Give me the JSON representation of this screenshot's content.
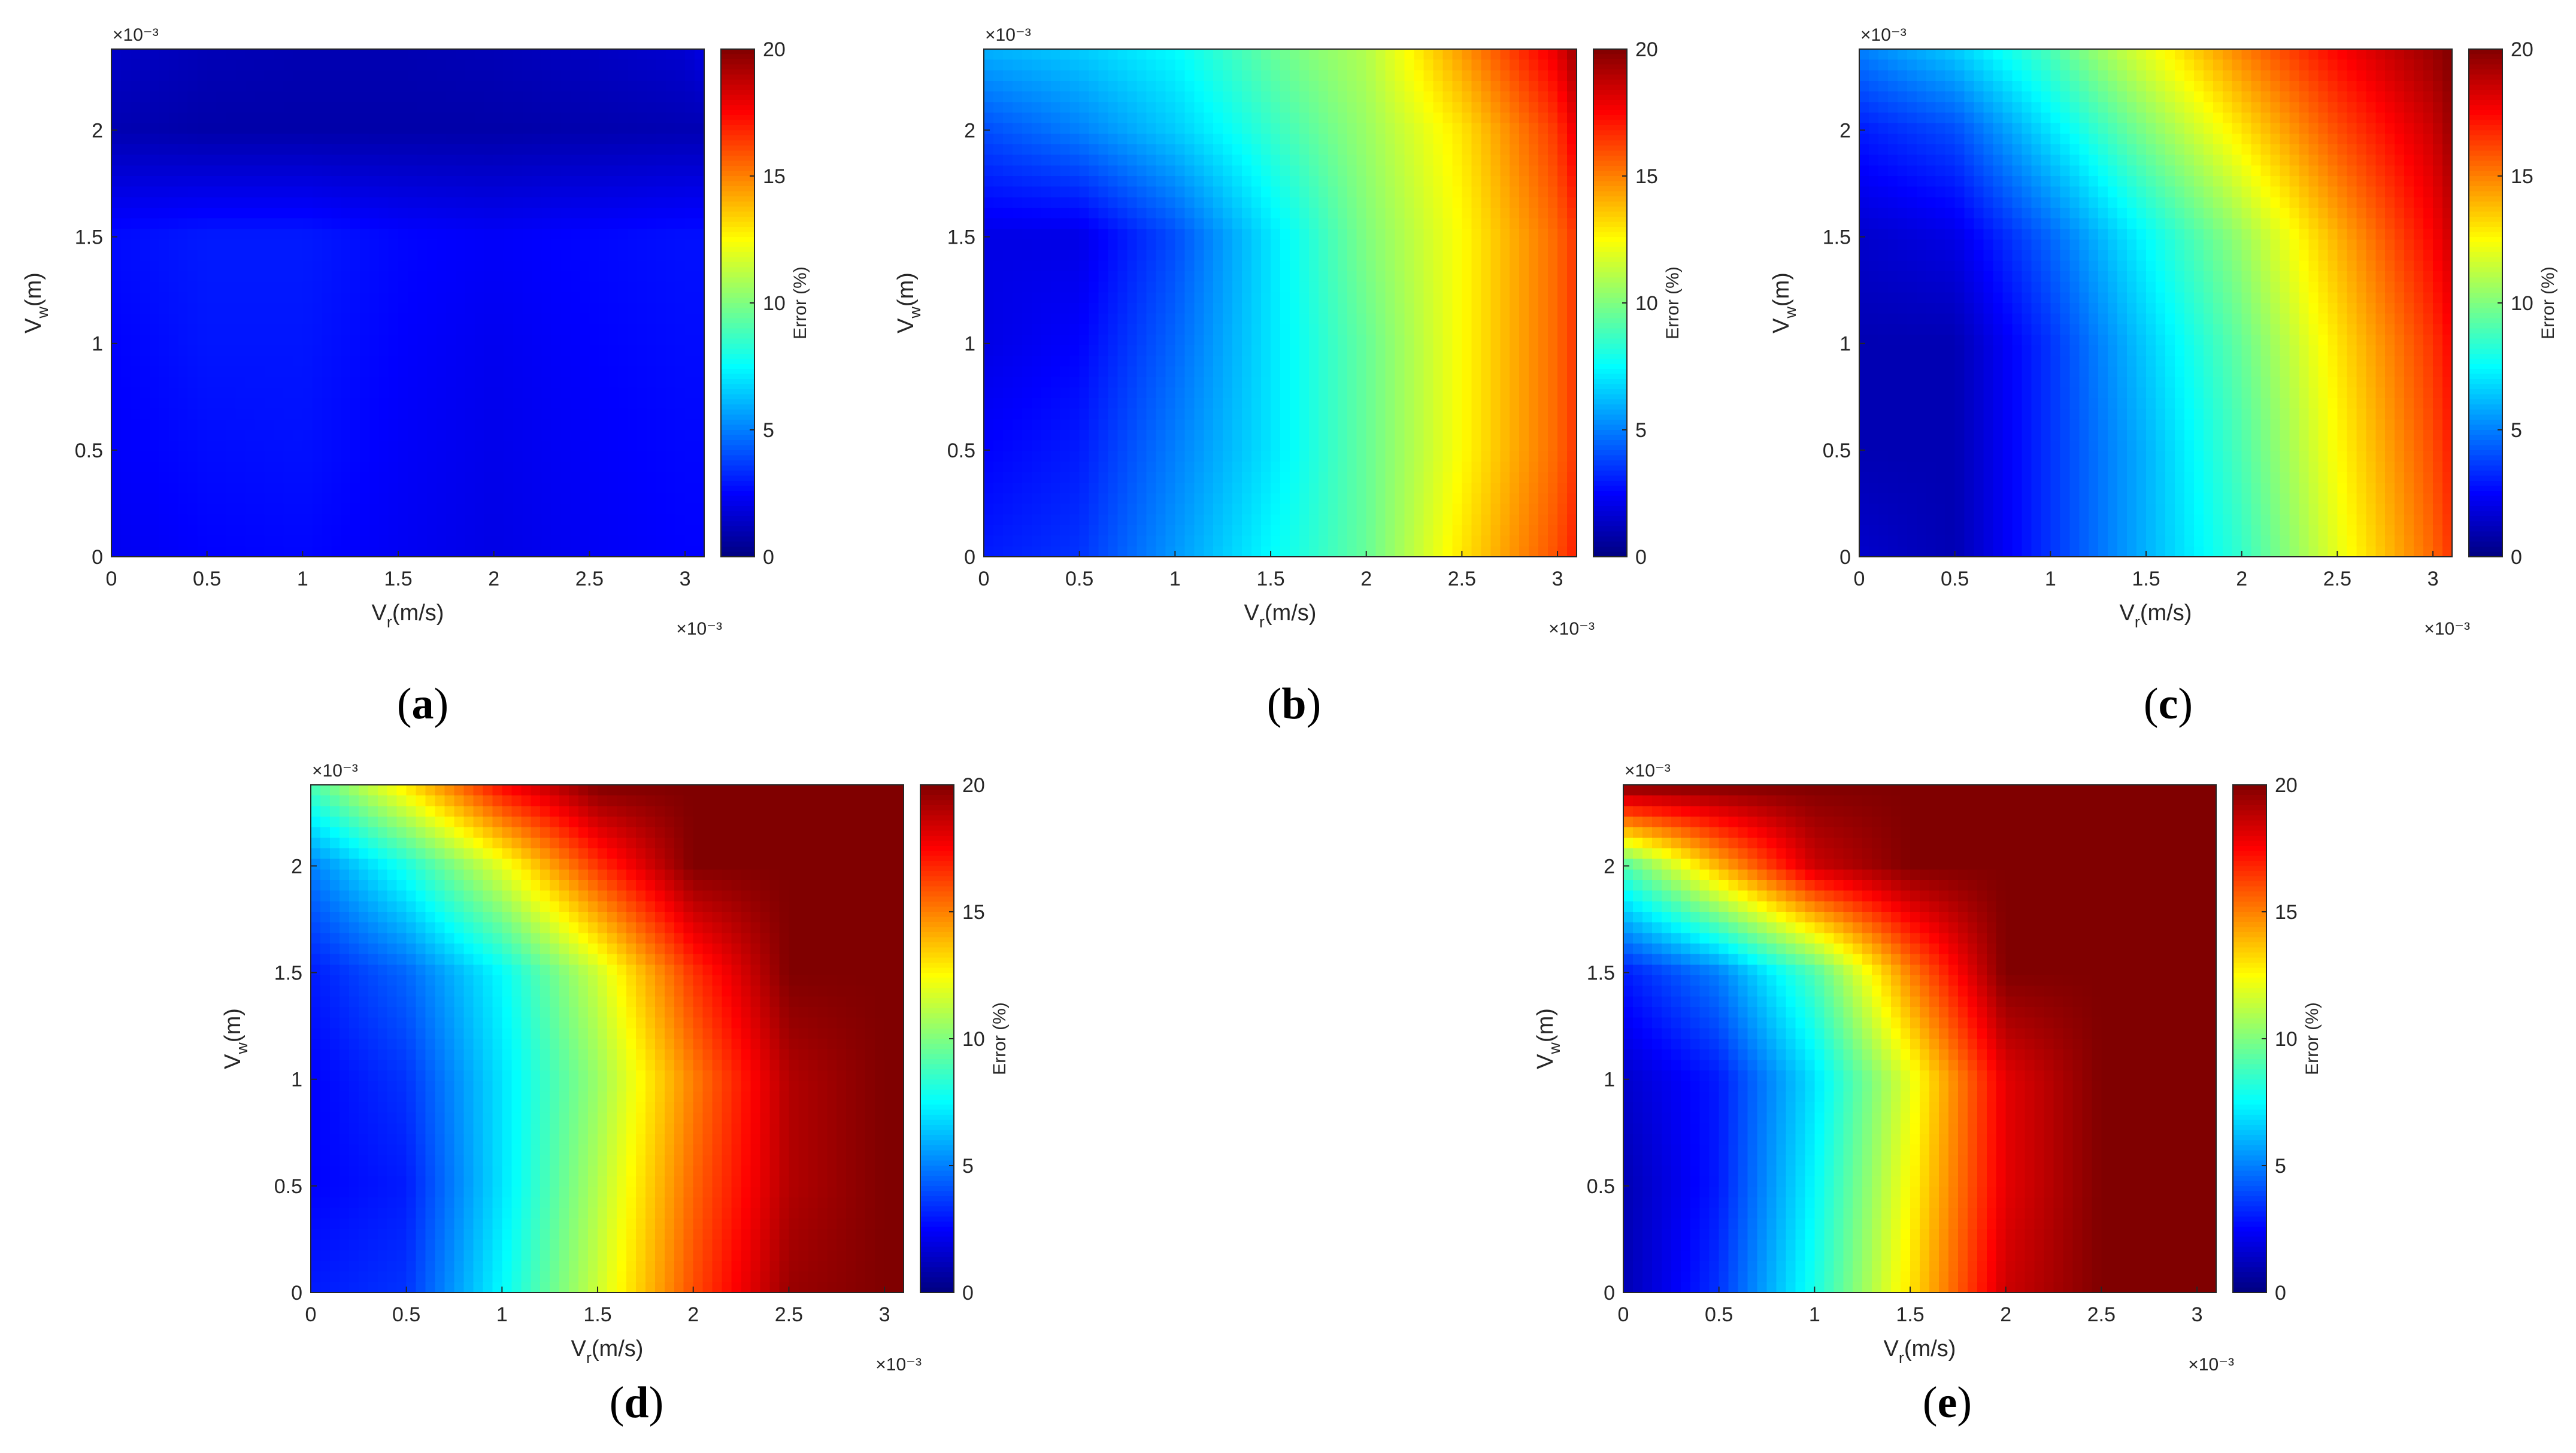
{
  "figure": {
    "panels": [
      {
        "id": "a",
        "caption": "(a)"
      },
      {
        "id": "b",
        "caption": "(b)"
      },
      {
        "id": "c",
        "caption": "(c)"
      },
      {
        "id": "d",
        "caption": "(d)"
      },
      {
        "id": "e",
        "caption": "(e)"
      }
    ]
  },
  "chart_data": [
    {
      "panel": "a",
      "type": "heatmap",
      "xlabel": {
        "main": "V",
        "sub": "r",
        "unit": "(m/s)"
      },
      "ylabel": {
        "main": "V",
        "sub": "w",
        "unit": "(m)"
      },
      "x_multiplier": "×10⁻³",
      "y_multiplier": "×10⁻³",
      "x_ticks": [
        "0",
        "0.5",
        "1",
        "1.5",
        "2",
        "2.5",
        "3"
      ],
      "y_ticks": [
        "0",
        "0.5",
        "1",
        "1.5",
        "2"
      ],
      "xlim": [
        0,
        3.1
      ],
      "ylim": [
        0,
        2.38
      ],
      "colorbar": {
        "label": "Error (%)",
        "ticks": [
          "0",
          "5",
          "10",
          "15",
          "20"
        ],
        "range": [
          0,
          20
        ],
        "colormap": "jet"
      },
      "x": [
        0,
        0.5,
        1,
        1.5,
        2,
        2.5,
        3,
        3.1
      ],
      "y": [
        0,
        0.5,
        1,
        1.5,
        2,
        2.38
      ],
      "z": [
        [
          2.2,
          2.5,
          2.6,
          2.3,
          2.0,
          2.3,
          2.5,
          2.5
        ],
        [
          2.4,
          2.7,
          2.8,
          2.4,
          2.1,
          2.4,
          2.6,
          2.6
        ],
        [
          2.5,
          2.9,
          2.9,
          2.5,
          2.2,
          2.5,
          2.7,
          2.7
        ],
        [
          2.7,
          3.0,
          3.0,
          2.6,
          2.4,
          2.6,
          2.8,
          2.8
        ],
        [
          1.0,
          0.8,
          0.8,
          0.8,
          0.8,
          0.9,
          1.0,
          1.0
        ],
        [
          1.4,
          1.1,
          1.0,
          1.0,
          1.1,
          1.3,
          1.6,
          2.0
        ]
      ]
    },
    {
      "panel": "b",
      "type": "heatmap",
      "xlabel": {
        "main": "V",
        "sub": "r",
        "unit": "(m/s)"
      },
      "ylabel": {
        "main": "V",
        "sub": "w",
        "unit": "(m)"
      },
      "x_multiplier": "×10⁻³",
      "y_multiplier": "×10⁻³",
      "x_ticks": [
        "0",
        "0.5",
        "1",
        "1.5",
        "2",
        "2.5",
        "3"
      ],
      "y_ticks": [
        "0",
        "0.5",
        "1",
        "1.5",
        "2"
      ],
      "xlim": [
        0,
        3.1
      ],
      "ylim": [
        0,
        2.38
      ],
      "colorbar": {
        "label": "Error (%)",
        "ticks": [
          "0",
          "5",
          "10",
          "15",
          "20"
        ],
        "range": [
          0,
          20
        ],
        "colormap": "jet"
      },
      "x": [
        0,
        0.5,
        1,
        1.5,
        2,
        2.5,
        3,
        3.1
      ],
      "y": [
        0,
        0.5,
        1,
        1.5,
        2,
        2.38
      ],
      "z": [
        [
          3.0,
          3.5,
          5.5,
          7.5,
          9.5,
          13.0,
          16.0,
          17.0
        ],
        [
          2.5,
          3.0,
          5.0,
          7.0,
          9.5,
          12.5,
          15.5,
          16.5
        ],
        [
          2.0,
          2.5,
          4.5,
          7.0,
          9.5,
          12.5,
          15.5,
          16.5
        ],
        [
          2.0,
          2.0,
          4.0,
          7.0,
          10.0,
          12.5,
          15.5,
          16.5
        ],
        [
          4.0,
          5.0,
          6.5,
          8.5,
          10.5,
          13.0,
          16.5,
          18.0
        ],
        [
          6.0,
          6.5,
          7.5,
          9.5,
          11.0,
          14.5,
          18.0,
          19.5
        ]
      ]
    },
    {
      "panel": "c",
      "type": "heatmap",
      "xlabel": {
        "main": "V",
        "sub": "r",
        "unit": "(m/s)"
      },
      "ylabel": {
        "main": "V",
        "sub": "w",
        "unit": "(m)"
      },
      "x_multiplier": "×10⁻³",
      "y_multiplier": "×10⁻³",
      "x_ticks": [
        "0",
        "0.5",
        "1",
        "1.5",
        "2",
        "2.5",
        "3"
      ],
      "y_ticks": [
        "0",
        "0.5",
        "1",
        "1.5",
        "2"
      ],
      "xlim": [
        0,
        3.1
      ],
      "ylim": [
        0,
        2.38
      ],
      "colorbar": {
        "label": "Error (%)",
        "ticks": [
          "0",
          "5",
          "10",
          "15",
          "20"
        ],
        "range": [
          0,
          20
        ],
        "colormap": "jet"
      },
      "x": [
        0,
        0.5,
        1,
        1.5,
        2,
        2.5,
        3,
        3.1
      ],
      "y": [
        0,
        0.5,
        1,
        1.5,
        2,
        2.38
      ],
      "z": [
        [
          1.5,
          1.0,
          3.5,
          6.0,
          8.5,
          12.0,
          15.5,
          16.5
        ],
        [
          1.0,
          1.0,
          3.5,
          6.0,
          9.0,
          12.5,
          16.0,
          17.0
        ],
        [
          1.0,
          1.0,
          3.5,
          6.5,
          9.5,
          13.0,
          16.5,
          17.5
        ],
        [
          1.5,
          2.0,
          4.5,
          7.5,
          10.5,
          14.0,
          17.5,
          18.5
        ],
        [
          3.0,
          4.0,
          7.0,
          10.0,
          13.0,
          16.0,
          18.5,
          19.5
        ],
        [
          5.0,
          6.5,
          9.0,
          12.0,
          15.0,
          17.5,
          19.5,
          20.0
        ]
      ]
    },
    {
      "panel": "d",
      "type": "heatmap",
      "xlabel": {
        "main": "V",
        "sub": "r",
        "unit": "(m/s)"
      },
      "ylabel": {
        "main": "V",
        "sub": "w",
        "unit": "(m)"
      },
      "x_multiplier": "×10⁻³",
      "y_multiplier": "×10⁻³",
      "x_ticks": [
        "0",
        "0.5",
        "1",
        "1.5",
        "2",
        "2.5",
        "3"
      ],
      "y_ticks": [
        "0",
        "0.5",
        "1",
        "1.5",
        "2"
      ],
      "xlim": [
        0,
        3.1
      ],
      "ylim": [
        0,
        2.38
      ],
      "colorbar": {
        "label": "Error (%)",
        "ticks": [
          "0",
          "5",
          "10",
          "15",
          "20"
        ],
        "range": [
          0,
          20
        ],
        "colormap": "jet"
      },
      "x": [
        0,
        0.5,
        1,
        1.5,
        2,
        2.5,
        3,
        3.1
      ],
      "y": [
        0,
        0.5,
        1,
        1.5,
        2,
        2.38
      ],
      "z": [
        [
          3.0,
          3.5,
          7.5,
          11.5,
          16.0,
          19.5,
          20.0,
          20.0
        ],
        [
          2.5,
          3.0,
          7.0,
          11.0,
          15.5,
          19.0,
          20.0,
          20.0
        ],
        [
          2.5,
          3.5,
          7.0,
          10.5,
          15.0,
          19.0,
          20.0,
          20.0
        ],
        [
          3.0,
          4.5,
          7.5,
          11.5,
          16.5,
          20.0,
          20.0,
          20.0
        ],
        [
          5.0,
          8.0,
          12.0,
          16.5,
          20.0,
          20.0,
          20.0,
          20.0
        ],
        [
          9.0,
          13.0,
          17.5,
          20.0,
          20.0,
          20.0,
          20.0,
          20.0
        ]
      ]
    },
    {
      "panel": "e",
      "type": "heatmap",
      "xlabel": {
        "main": "V",
        "sub": "r",
        "unit": "(m/s)"
      },
      "ylabel": {
        "main": "V",
        "sub": "w",
        "unit": "(m)"
      },
      "x_multiplier": "×10⁻³",
      "y_multiplier": "×10⁻³",
      "x_ticks": [
        "0",
        "0.5",
        "1",
        "1.5",
        "2",
        "2.5",
        "3"
      ],
      "y_ticks": [
        "0",
        "0.5",
        "1",
        "1.5",
        "2"
      ],
      "xlim": [
        0,
        3.1
      ],
      "ylim": [
        0,
        2.38
      ],
      "colorbar": {
        "label": "Error (%)",
        "ticks": [
          "0",
          "5",
          "10",
          "15",
          "20"
        ],
        "range": [
          0,
          20
        ],
        "colormap": "jet"
      },
      "x": [
        0,
        0.5,
        1,
        1.5,
        2,
        2.5,
        3,
        3.1
      ],
      "y": [
        0,
        0.5,
        1,
        1.5,
        2,
        2.38
      ],
      "z": [
        [
          1.0,
          3.5,
          8.0,
          13.0,
          18.5,
          20.0,
          20.0,
          20.0
        ],
        [
          1.0,
          3.0,
          7.5,
          12.5,
          18.0,
          20.0,
          20.0,
          20.0
        ],
        [
          1.5,
          3.0,
          7.0,
          12.0,
          18.0,
          20.0,
          20.0,
          20.0
        ],
        [
          3.0,
          5.0,
          9.0,
          15.0,
          20.0,
          20.0,
          20.0,
          20.0
        ],
        [
          9.0,
          14.0,
          18.5,
          20.0,
          20.0,
          20.0,
          20.0,
          20.0
        ],
        [
          20.0,
          20.0,
          20.0,
          20.0,
          20.0,
          20.0,
          20.0,
          20.0
        ]
      ]
    }
  ]
}
